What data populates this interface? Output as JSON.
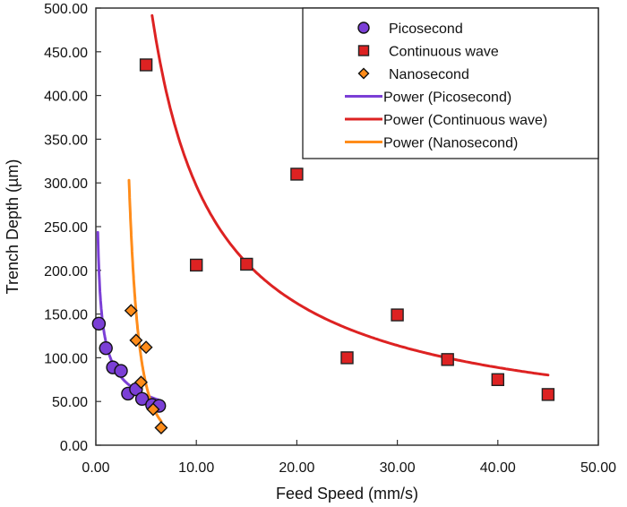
{
  "chart_data": {
    "type": "scatter",
    "title": "",
    "xlabel": "Feed Speed (mm/s)",
    "ylabel": "Trench Depth (µm)",
    "xlim": [
      0,
      50
    ],
    "ylim": [
      0,
      500
    ],
    "x_ticks": [
      "0.00",
      "10.00",
      "20.00",
      "30.00",
      "40.00",
      "50.00"
    ],
    "y_ticks": [
      "0.00",
      "50.00",
      "100.00",
      "150.00",
      "200.00",
      "250.00",
      "300.00",
      "350.00",
      "400.00",
      "450.00",
      "500.00"
    ],
    "grid": false,
    "legend_position": "top-right",
    "series": [
      {
        "name": "Picosecond",
        "marker": "circle",
        "color": "#7B3FD6",
        "x": [
          0.3,
          1.0,
          1.7,
          2.5,
          3.2,
          4.0,
          4.6,
          5.6,
          6.3
        ],
        "y": [
          139,
          111,
          89,
          85,
          59,
          64,
          53,
          46,
          45
        ]
      },
      {
        "name": "Continuous wave",
        "marker": "square",
        "color": "#DD2222",
        "x": [
          5,
          10,
          15,
          20,
          25,
          30,
          35,
          40,
          45
        ],
        "y": [
          435,
          206,
          207,
          310,
          100,
          149,
          98,
          75,
          58
        ]
      },
      {
        "name": "Nanosecond",
        "marker": "diamond",
        "color": "#FF8C1A",
        "x": [
          3.5,
          4.0,
          5.0,
          4.5,
          5.7,
          6.5
        ],
        "y": [
          154,
          120,
          112,
          72,
          41,
          20
        ]
      }
    ],
    "trendlines": [
      {
        "name": "Power (Picosecond)",
        "color": "#7B3FD6",
        "type": "power",
        "a": 118,
        "b": -0.45,
        "x_range": [
          0.2,
          6.3
        ]
      },
      {
        "name": "Power (Continuous wave)",
        "color": "#DD2222",
        "type": "power",
        "a": 2200,
        "b": -0.87,
        "x_range": [
          5.0,
          45
        ]
      },
      {
        "name": "Power (Nanosecond)",
        "color": "#FF8C1A",
        "type": "power",
        "a": 21000,
        "b": -3.55,
        "x_range": [
          3.3,
          6.5
        ]
      }
    ],
    "legend": [
      {
        "label": "Picosecond",
        "kind": "marker",
        "marker": "circle",
        "color": "#7B3FD6"
      },
      {
        "label": "Continuous wave",
        "kind": "marker",
        "marker": "square",
        "color": "#DD2222"
      },
      {
        "label": "Nanosecond",
        "kind": "marker",
        "marker": "diamond",
        "color": "#FF8C1A"
      },
      {
        "label": "Power (Picosecond)",
        "kind": "line",
        "color": "#7B3FD6"
      },
      {
        "label": "Power (Continuous wave)",
        "kind": "line",
        "color": "#DD2222"
      },
      {
        "label": "Power (Nanosecond)",
        "kind": "line",
        "color": "#FF8C1A"
      }
    ]
  }
}
